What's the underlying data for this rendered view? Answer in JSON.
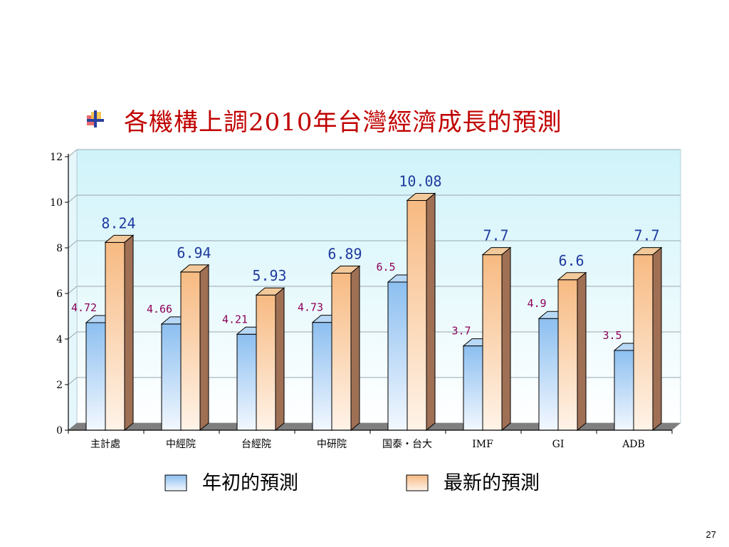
{
  "slide": {
    "title": "各機構上調2010年台灣經濟成長的預測",
    "page_number": "27",
    "bullet_icon": "bullet-square-icon"
  },
  "colors": {
    "title": "#C00000",
    "initial_label": "#8B0057",
    "latest_label": "#1F3A9E",
    "plot_bg_top": "#CFF3FA",
    "plot_bg_bottom": "#FFFFFF",
    "initial_bar": "#A9CFF3",
    "latest_bar": "#F9C79B"
  },
  "chart_data": {
    "type": "bar",
    "categories": [
      "主計處",
      "中經院",
      "台經院",
      "中研院",
      "国泰・台大",
      "IMF",
      "GI",
      "ADB"
    ],
    "ylim": [
      0,
      12
    ],
    "yticks": [
      "0",
      "2",
      "4",
      "6",
      "8",
      "10",
      "12"
    ],
    "grid": true,
    "legend_position": "bottom",
    "series": [
      {
        "name": "年初的預測",
        "values": [
          4.72,
          4.66,
          4.21,
          4.73,
          6.5,
          3.7,
          4.9,
          3.5
        ],
        "labels": [
          "4.72",
          "4.66",
          "4.21",
          "4.73",
          "6.5",
          "3.7",
          "4.9",
          "3.5"
        ]
      },
      {
        "name": "最新的預測",
        "values": [
          8.24,
          6.94,
          5.93,
          6.89,
          10.08,
          7.7,
          6.6,
          7.7
        ],
        "labels": [
          "8.24",
          "6.94",
          "5.93",
          "6.89",
          "10.08",
          "7.7",
          "6.6",
          "7.7"
        ]
      }
    ]
  }
}
